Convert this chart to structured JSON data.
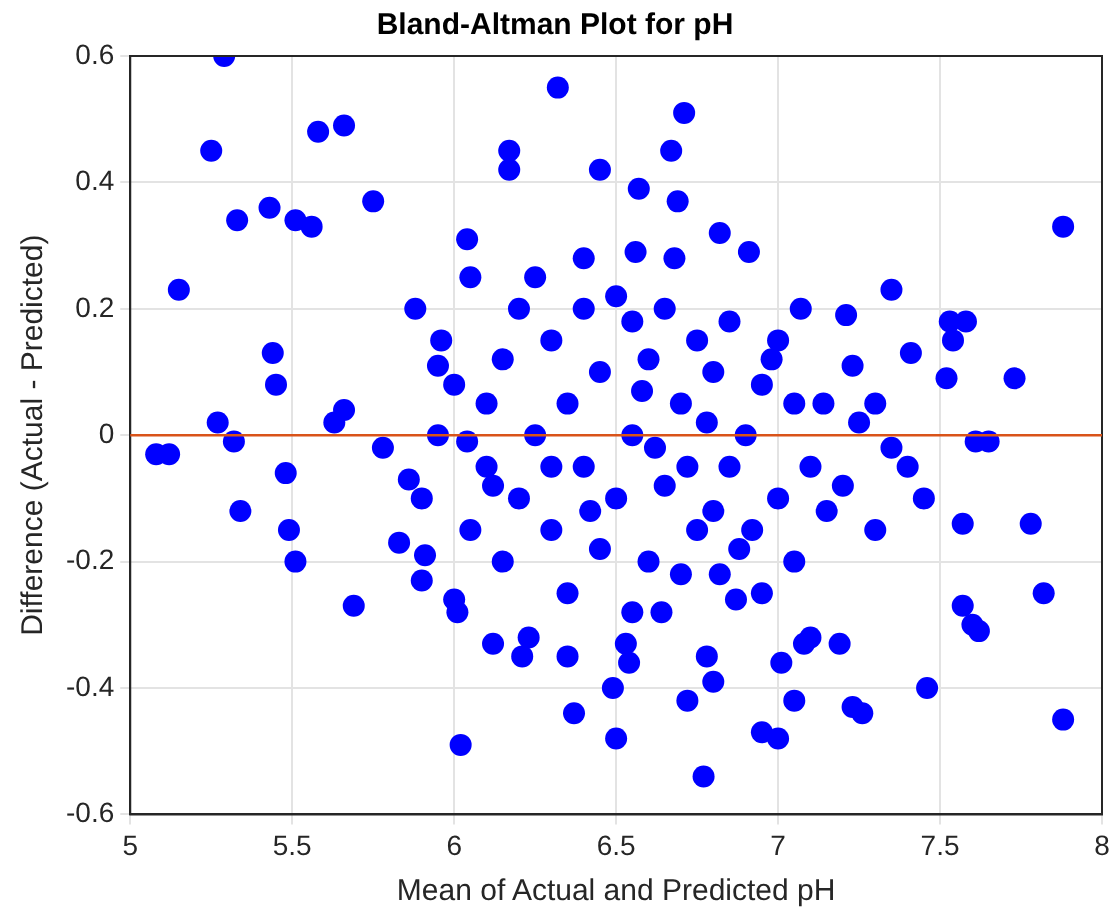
{
  "chart_data": {
    "type": "scatter",
    "title": "Bland-Altman Plot for pH",
    "xlabel": "Mean of Actual and Predicted pH",
    "ylabel": "Difference (Actual - Predicted)",
    "x": [
      5.08,
      5.12,
      5.15,
      5.25,
      5.29,
      5.27,
      5.32,
      5.33,
      5.34,
      5.43,
      5.44,
      5.45,
      5.48,
      5.49,
      5.51,
      5.51,
      5.56,
      5.58,
      5.66,
      5.75,
      5.69,
      5.63,
      5.66,
      5.78,
      5.91,
      5.86,
      5.83,
      5.9,
      5.88,
      6.0,
      6.01,
      6.02,
      6.04,
      6.04,
      5.95,
      5.96,
      6.12,
      6.12,
      6.17,
      6.17,
      6.21,
      6.23,
      6.32,
      6.35,
      6.37,
      6.45,
      6.5,
      6.53,
      6.49,
      6.54,
      6.56,
      6.57,
      6.64,
      6.67,
      6.71,
      6.69,
      6.72,
      6.77,
      6.78,
      6.8,
      6.87,
      6.82,
      6.91,
      6.95,
      7.0,
      7.01,
      7.05,
      7.07,
      7.08,
      7.1,
      7.14,
      7.19,
      7.21,
      7.23,
      7.23,
      7.26,
      7.3,
      7.35,
      7.41,
      7.46,
      7.52,
      7.53,
      7.54,
      7.58,
      7.57,
      7.57,
      7.6,
      7.62,
      7.61,
      7.65,
      7.73,
      7.78,
      7.82,
      7.88,
      7.88,
      6.3,
      6.35,
      6.4,
      6.45,
      6.5,
      6.55,
      6.6,
      6.65,
      6.7,
      6.75,
      6.8,
      6.85,
      6.9,
      6.4,
      6.5,
      6.6,
      6.7,
      6.3,
      6.25,
      6.2,
      6.15,
      6.35,
      6.45,
      6.55,
      6.65,
      6.75,
      6.8,
      6.85,
      6.95,
      7.0,
      7.05,
      6.1,
      6.2,
      6.3,
      6.42,
      6.58,
      6.62,
      6.72,
      6.78,
      6.88,
      6.92,
      6.98,
      6.05,
      6.15,
      6.25,
      6.4,
      6.55,
      6.68,
      6.82,
      7.1,
      7.15,
      7.2,
      7.25,
      7.3,
      7.4,
      7.35,
      7.45,
      7.0,
      6.95,
      7.05,
      5.95,
      6.0,
      5.9,
      6.05,
      6.1
    ],
    "series": [
      {
        "color": "#0000ff",
        "values": [
          -0.03,
          -0.03,
          0.23,
          0.45,
          0.6,
          0.02,
          -0.01,
          0.34,
          -0.12,
          0.36,
          0.13,
          0.08,
          -0.06,
          -0.15,
          -0.2,
          0.34,
          0.33,
          0.48,
          0.49,
          0.37,
          -0.27,
          0.02,
          0.04,
          -0.02,
          -0.19,
          -0.07,
          -0.17,
          -0.23,
          0.2,
          -0.26,
          -0.28,
          -0.49,
          0.31,
          -0.01,
          0.11,
          0.15,
          -0.08,
          -0.33,
          0.42,
          0.45,
          -0.35,
          -0.32,
          0.55,
          -0.35,
          -0.44,
          0.42,
          -0.48,
          -0.33,
          -0.4,
          -0.36,
          0.29,
          0.39,
          -0.28,
          0.45,
          0.51,
          0.37,
          -0.42,
          -0.54,
          -0.35,
          -0.39,
          -0.26,
          0.32,
          0.29,
          -0.47,
          -0.48,
          -0.36,
          -0.42,
          0.2,
          -0.33,
          -0.32,
          0.05,
          -0.33,
          0.19,
          0.11,
          -0.43,
          -0.44,
          0.05,
          0.23,
          0.13,
          -0.4,
          0.09,
          0.18,
          0.15,
          0.18,
          -0.14,
          -0.27,
          -0.3,
          -0.31,
          -0.01,
          -0.01,
          0.09,
          -0.14,
          -0.25,
          0.33,
          -0.45,
          0.15,
          0.05,
          -0.05,
          0.1,
          -0.1,
          0.0,
          0.12,
          -0.08,
          0.05,
          -0.15,
          0.1,
          -0.05,
          0.0,
          0.2,
          0.22,
          -0.2,
          -0.22,
          -0.15,
          0.0,
          -0.1,
          0.12,
          -0.25,
          -0.18,
          0.18,
          0.2,
          0.15,
          -0.12,
          0.18,
          0.08,
          -0.1,
          0.05,
          0.05,
          0.2,
          -0.05,
          -0.12,
          0.07,
          -0.02,
          -0.05,
          0.02,
          -0.18,
          -0.15,
          0.12,
          -0.15,
          -0.2,
          0.25,
          0.28,
          -0.28,
          0.28,
          -0.22,
          -0.05,
          -0.12,
          -0.08,
          0.02,
          -0.15,
          -0.05,
          -0.02,
          -0.1,
          0.15,
          -0.25,
          -0.2,
          0.0,
          0.08,
          -0.1,
          0.25,
          -0.05
        ]
      }
    ],
    "xlim": [
      5,
      8
    ],
    "xticks": [
      5,
      5.5,
      6,
      6.5,
      7,
      7.5,
      8
    ],
    "ylim": [
      -0.6,
      0.6
    ],
    "yticks": [
      -0.6,
      -0.4,
      -0.2,
      0,
      0.2,
      0.4,
      0.6
    ],
    "ref_lines": [
      {
        "axis": "y",
        "value": 0,
        "color": "#d95319"
      }
    ],
    "grid": true,
    "legend": false,
    "marker": "circle"
  }
}
